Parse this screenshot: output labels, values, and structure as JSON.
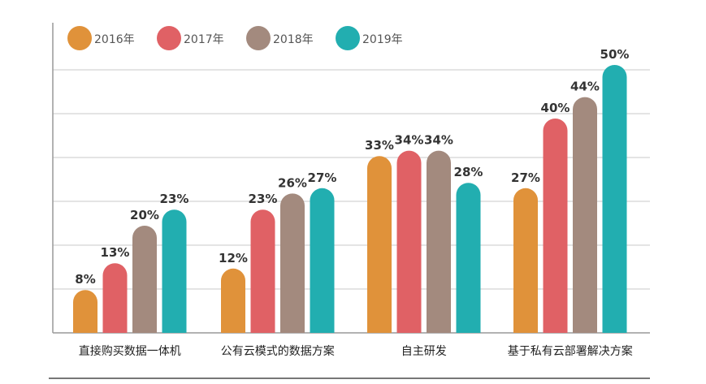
{
  "chart_data": {
    "type": "bar",
    "title": "",
    "xlabel": "",
    "ylabel": "",
    "ylim": [
      0,
      50
    ],
    "grid": true,
    "legend_position": "top-left",
    "categories": [
      "直接购买数据一体机",
      "公有云模式的数据方案",
      "自主研发",
      "基于私有云部署解决方案"
    ],
    "series": [
      {
        "name": "2016年",
        "color": "#E0923A",
        "values": [
          8,
          12,
          33,
          27
        ],
        "labels": [
          "8%",
          "12%",
          "33%",
          "27%"
        ]
      },
      {
        "name": "2017年",
        "color": "#E06165",
        "values": [
          13,
          23,
          34,
          40
        ],
        "labels": [
          "13%",
          "23%",
          "34%",
          "40%"
        ]
      },
      {
        "name": "2018年",
        "color": "#A38A7E",
        "values": [
          20,
          26,
          34,
          44
        ],
        "labels": [
          "20%",
          "26%",
          "34%",
          "44%"
        ]
      },
      {
        "name": "2019年",
        "color": "#22AEB0",
        "values": [
          23,
          27,
          28,
          50
        ],
        "labels": [
          "23%",
          "27%",
          "28%",
          "50%"
        ]
      }
    ]
  }
}
